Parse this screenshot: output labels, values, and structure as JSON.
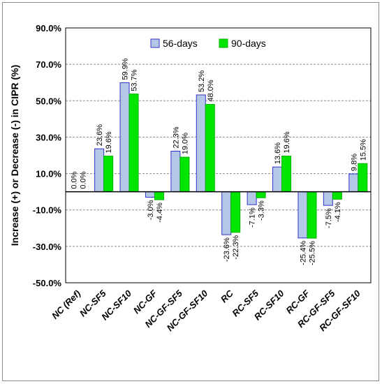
{
  "chart_data": {
    "type": "bar",
    "title": "",
    "xlabel": "",
    "ylabel": "Increase (+) or Decrease (-) in CIPR (%)",
    "ylim": [
      -50,
      90
    ],
    "yticks": [
      "90.0%",
      "70.0%",
      "50.0%",
      "30.0%",
      "10.0%",
      "-10.0%",
      "-30.0%",
      "-50.0%"
    ],
    "grid": true,
    "legend_position": "top-center",
    "categories": [
      "NC (Ref)",
      "NC-SF5",
      "NC-SF10",
      "NC-GF",
      "NC-GF-SF5",
      "NC-GF-SF10",
      "RC",
      "RC-SF5",
      "RC-SF10",
      "RC-GF",
      "RC-GF-SF5",
      "RC-GF-SF10"
    ],
    "series": [
      {
        "name": "56-days",
        "color": "#b4c7e7",
        "edge_color": "#3333cc",
        "values": [
          0.0,
          23.6,
          59.9,
          -3.0,
          22.3,
          53.2,
          -23.6,
          -7.1,
          13.6,
          -25.4,
          -7.5,
          9.8
        ],
        "labels": [
          "0.0%",
          "23.6%",
          "59.9%",
          "-3.0%",
          "22.3%",
          "53.2%",
          "-23.6%",
          "-7.1%",
          "13.6%",
          "-25.4%",
          "-7.5%",
          "9.8%"
        ]
      },
      {
        "name": "90-days",
        "color": "#00e600",
        "edge_color": "#00b300",
        "values": [
          0.0,
          19.6,
          53.7,
          -4.4,
          19.0,
          48.0,
          -22.3,
          -3.3,
          19.6,
          -25.5,
          -4.1,
          15.5
        ],
        "labels": [
          "0.0%",
          "19.6%",
          "53.7%",
          "-4.4%",
          "19.0%",
          "48.0%",
          "-22.3%",
          "-3.3%",
          "19.6%",
          "-25.5%",
          "-4.1%",
          "15.5%"
        ]
      }
    ]
  }
}
